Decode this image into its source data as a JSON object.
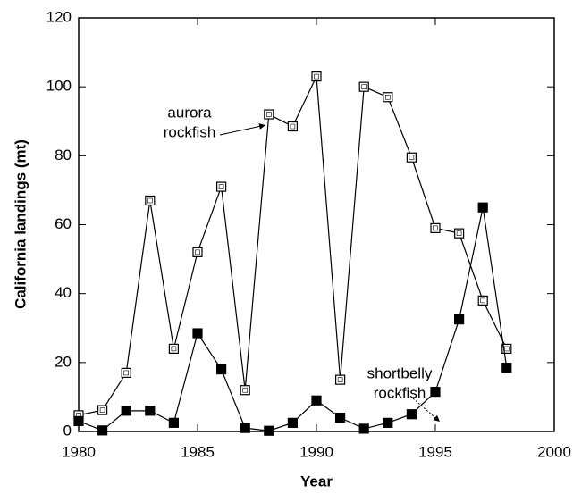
{
  "chart_data": {
    "type": "line",
    "x_label": "Year",
    "y_label": "California landings (mt)",
    "x": [
      1980,
      1981,
      1982,
      1983,
      1984,
      1985,
      1986,
      1987,
      1988,
      1989,
      1990,
      1991,
      1992,
      1993,
      1994,
      1995,
      1996,
      1997,
      1998
    ],
    "series": [
      {
        "name": "aurora rockfish",
        "color": "#000000",
        "marker": "open-square",
        "values": [
          4.7,
          6.2,
          17,
          67,
          24,
          52,
          71,
          12,
          92,
          88.5,
          103,
          15,
          100,
          97,
          79.5,
          59,
          57.5,
          38,
          24
        ]
      },
      {
        "name": "shortbelly rockfish",
        "color": "#000000",
        "marker": "filled-square",
        "values": [
          3,
          0.3,
          6,
          6,
          2.5,
          28.5,
          18,
          1,
          0.2,
          2.5,
          9,
          4,
          0.8,
          2.5,
          5,
          11.5,
          32.5,
          65,
          18.5
        ]
      }
    ],
    "annotations": [
      {
        "lines": [
          "aurora",
          "rockfish"
        ]
      },
      {
        "lines": [
          "shortbelly",
          "rockfish"
        ]
      }
    ],
    "xlim": [
      1980,
      2000
    ],
    "xticks": [
      1980,
      1985,
      1990,
      1995,
      2000
    ],
    "ylim": [
      0,
      120
    ],
    "yticks": [
      0,
      20,
      40,
      60,
      80,
      100,
      120
    ],
    "grid": false
  }
}
